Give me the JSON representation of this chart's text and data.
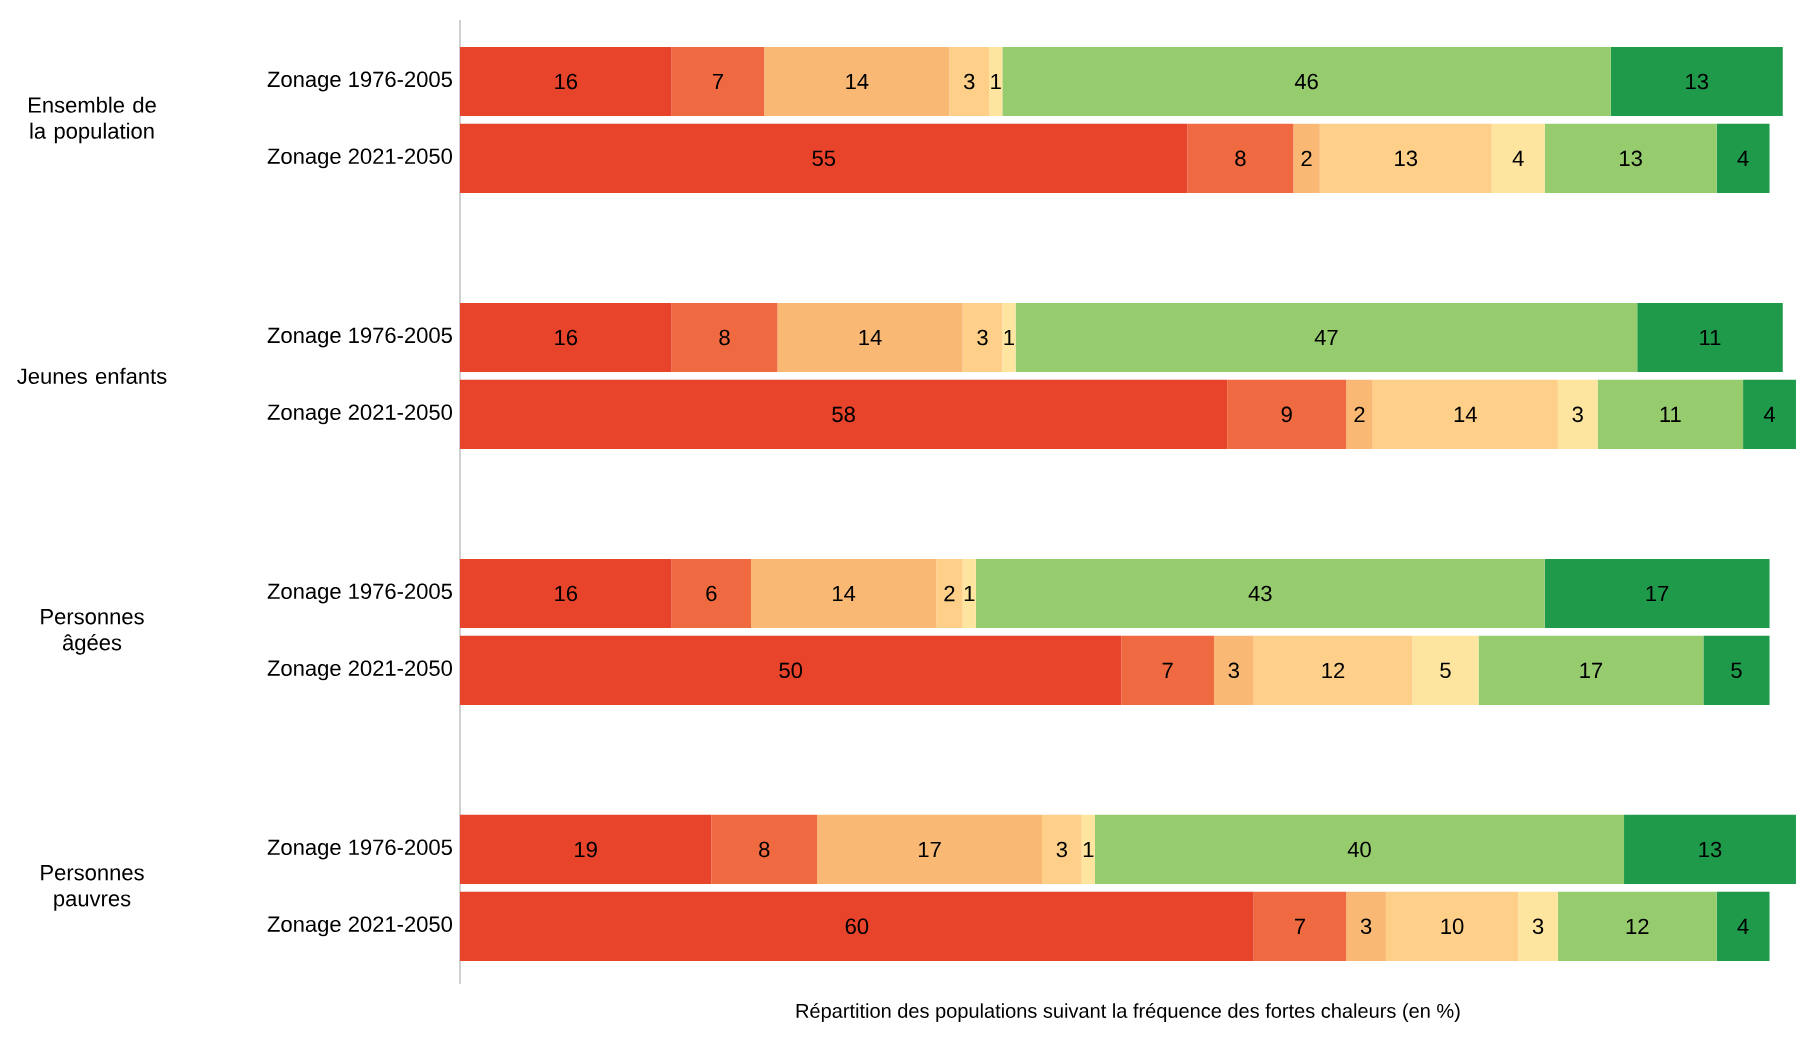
{
  "chart_data": {
    "type": "bar",
    "orientation": "horizontal",
    "stacked": true,
    "xlabel": "Répartition des populations suivant la fréquence des fortes chaleurs (en %)",
    "categories": [
      "Zonage 1976-2005",
      "Zonage 2021-2050",
      "Zonage 1976-2005",
      "Zonage 2021-2050",
      "Zonage 1976-2005",
      "Zonage 2021-2050",
      "Zonage 1976-2005",
      "Zonage 2021-2050"
    ],
    "annotations": [
      "Ensemble de la population",
      "Jeunes enfants",
      "Personnes âgées",
      "Personnes pauvres"
    ],
    "series": [
      {
        "color": "#e8432b",
        "values": [
          16,
          55,
          16,
          58,
          16,
          50,
          19,
          60
        ]
      },
      {
        "color": "#ef6a40",
        "values": [
          7,
          8,
          8,
          9,
          6,
          7,
          8,
          7
        ]
      },
      {
        "color": "#f9b975",
        "values": [
          14,
          2,
          14,
          2,
          14,
          3,
          17,
          3
        ]
      },
      {
        "color": "#fdcf88",
        "values": [
          3,
          13,
          3,
          14,
          2,
          12,
          3,
          10
        ]
      },
      {
        "color": "#fde59f",
        "values": [
          1,
          4,
          1,
          3,
          1,
          5,
          1,
          3
        ]
      },
      {
        "color": "#96cb6e",
        "values": [
          46,
          13,
          47,
          11,
          43,
          17,
          40,
          12
        ]
      },
      {
        "color": "#1e9a4a",
        "values": [
          13,
          4,
          11,
          4,
          17,
          5,
          13,
          4
        ]
      }
    ],
    "data_labels": true,
    "tick_labels": "y"
  }
}
